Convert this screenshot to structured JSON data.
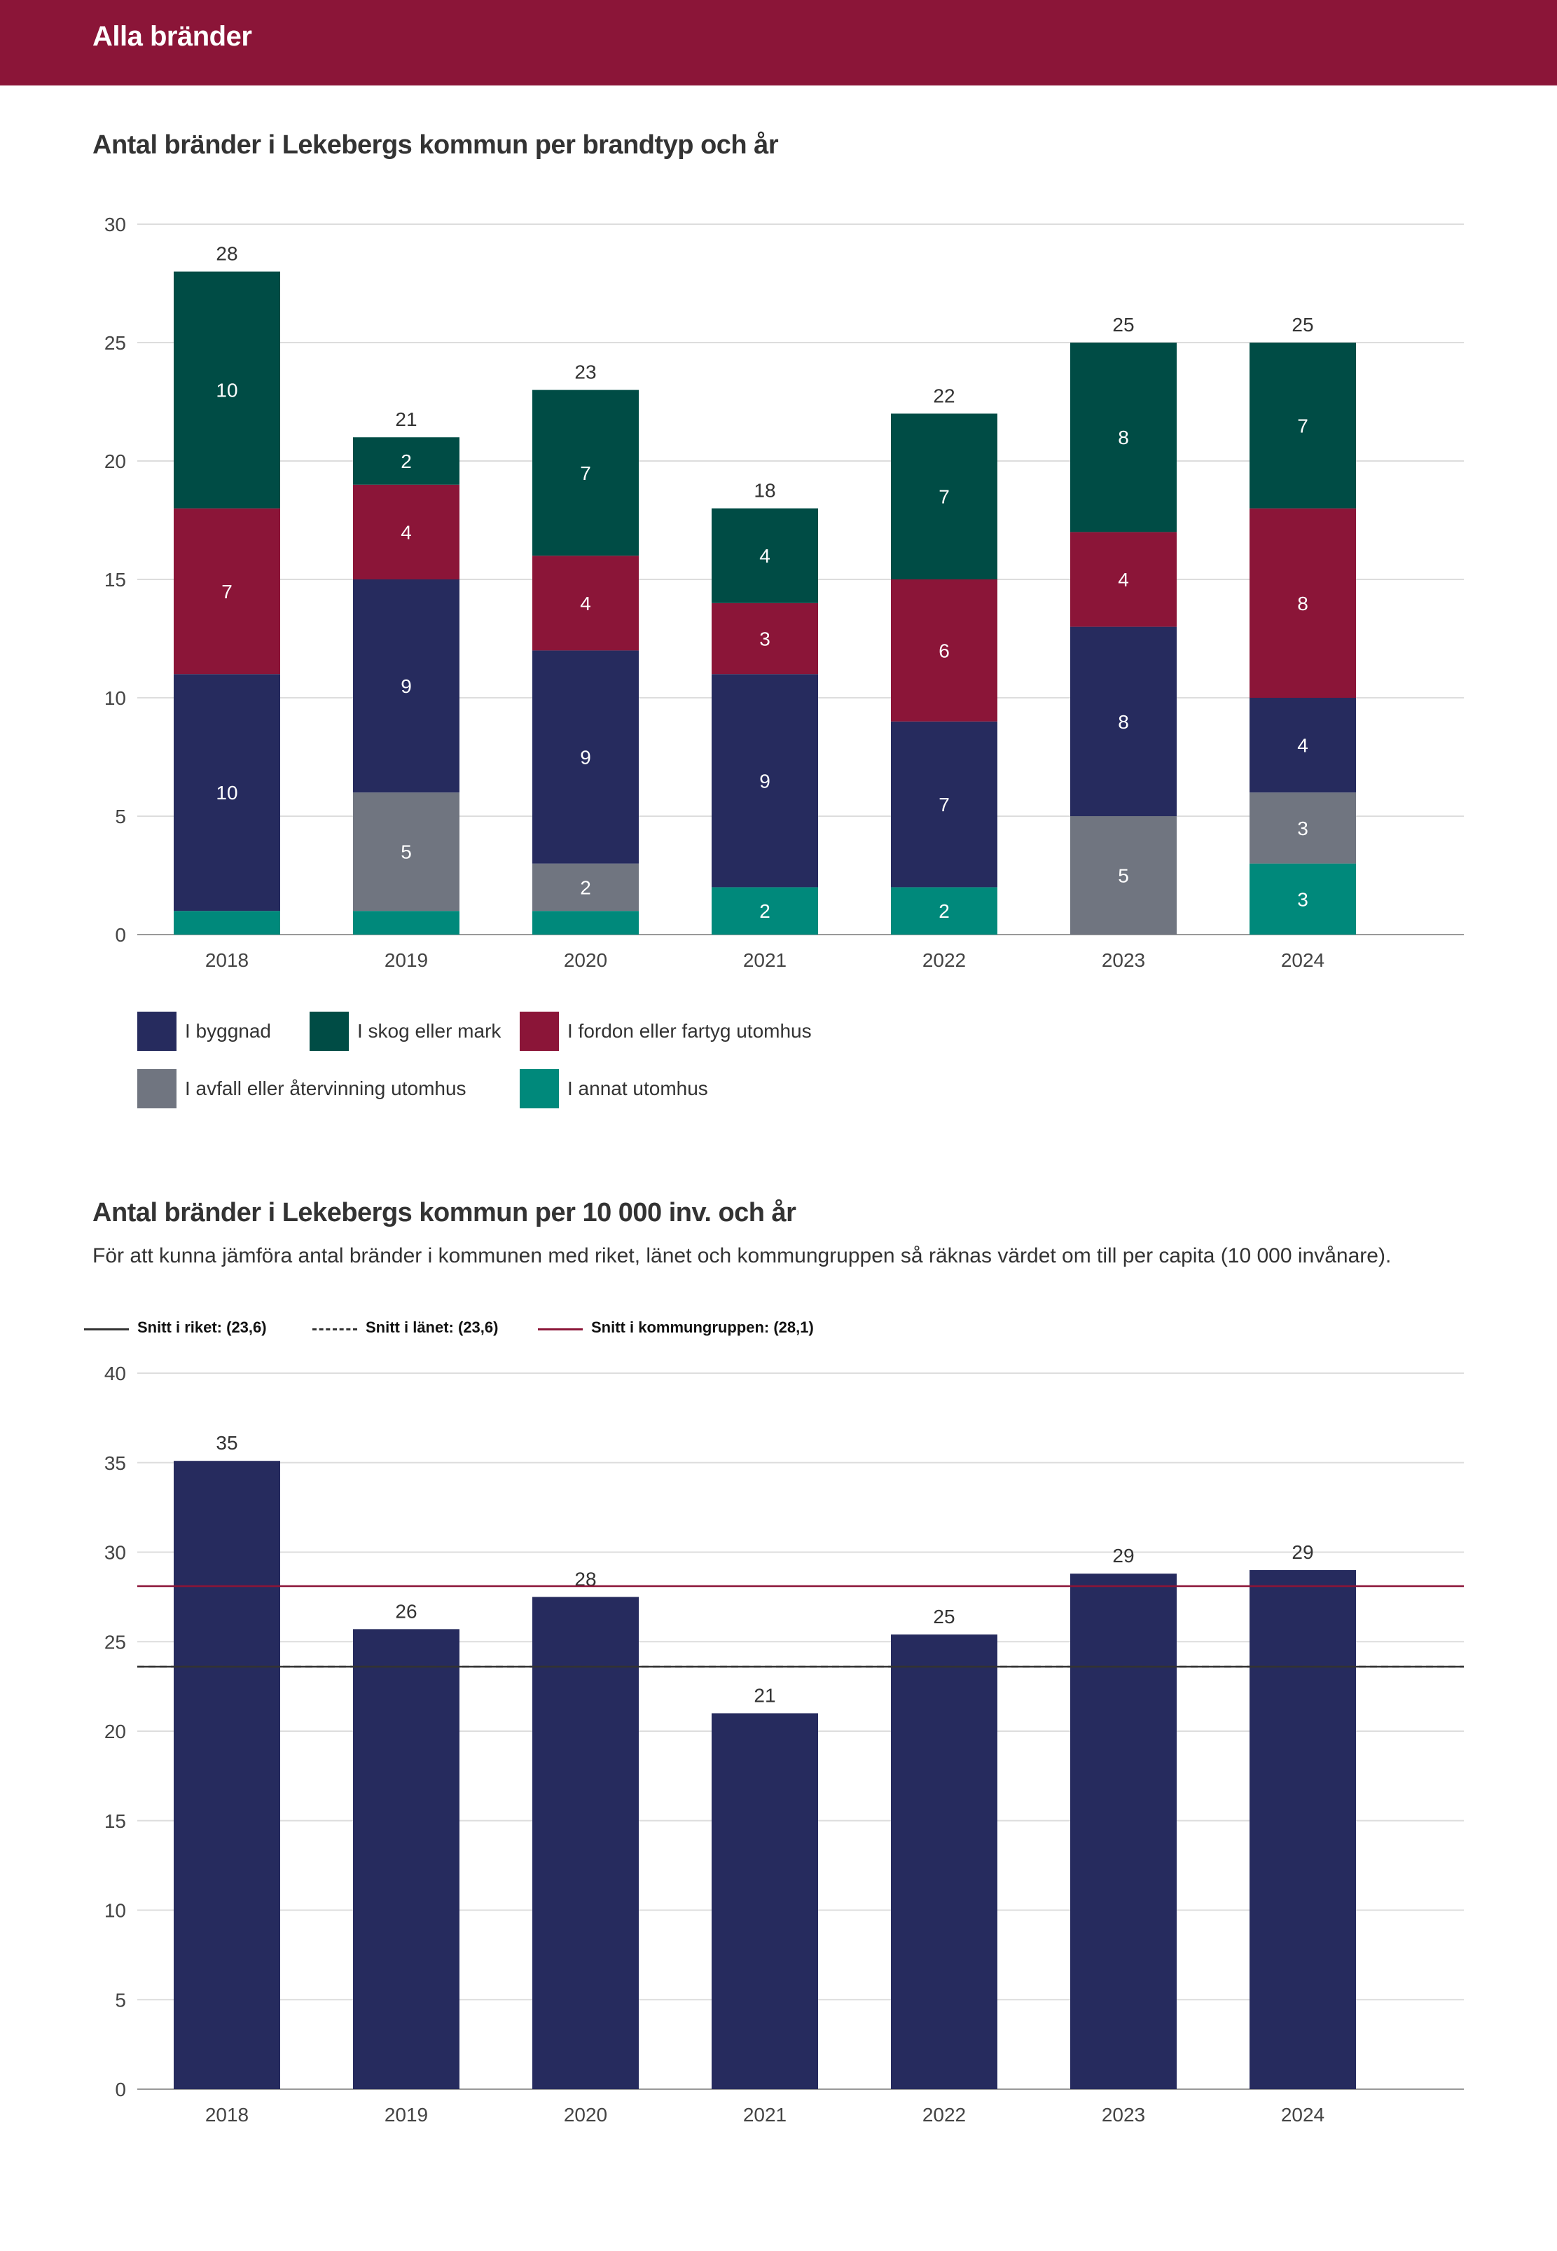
{
  "header": {
    "title": "Alla bränder"
  },
  "section1": {
    "title": "Antal bränder i Lekebergs kommun per brandtyp och år"
  },
  "section2": {
    "title": "Antal bränder i Lekebergs kommun per 10 000 inv. och år",
    "description": "För att kunna jämföra antal bränder i kommunen med riket, länet och kommungruppen så räknas värdet om till per capita (10 000 invånare)."
  },
  "legend1": [
    {
      "label": "I byggnad",
      "color": "#262b5e"
    },
    {
      "label": "I skog eller mark",
      "color": "#004c45"
    },
    {
      "label": "I fordon eller fartyg utomhus",
      "color": "#8b1538"
    },
    {
      "label": "I avfall eller återvinning utomhus",
      "color": "#707580"
    },
    {
      "label": "I annat utomhus",
      "color": "#00897b"
    }
  ],
  "reference_lines": [
    {
      "label": "Snitt i riket: (23,6)",
      "value": 23.6,
      "style": "solid",
      "color": "#333333"
    },
    {
      "label": "Snitt i länet: (23,6)",
      "value": 23.6,
      "style": "dashed",
      "color": "#333333"
    },
    {
      "label": "Snitt i kommungruppen: (28,1)",
      "value": 28.1,
      "style": "solid",
      "color": "#8b1538"
    }
  ],
  "chart_data": [
    {
      "type": "bar",
      "stacked": true,
      "title": "Antal bränder i Lekebergs kommun per brandtyp och år",
      "categories": [
        "2018",
        "2019",
        "2020",
        "2021",
        "2022",
        "2023",
        "2024"
      ],
      "ylim": [
        0,
        30
      ],
      "yticks": [
        0,
        5,
        10,
        15,
        20,
        25,
        30
      ],
      "totals": [
        28,
        21,
        23,
        18,
        22,
        25,
        25
      ],
      "series": [
        {
          "name": "I annat utomhus",
          "color": "#00897b",
          "values": [
            1,
            1,
            1,
            2,
            2,
            0,
            3
          ],
          "labels": [
            "",
            "",
            "",
            "2",
            "2",
            "",
            "3"
          ]
        },
        {
          "name": "I avfall eller återvinning utomhus",
          "color": "#707580",
          "values": [
            0,
            5,
            2,
            0,
            0,
            5,
            3
          ],
          "labels": [
            "",
            "5",
            "2",
            "",
            "",
            "5",
            "3"
          ]
        },
        {
          "name": "I byggnad",
          "color": "#262b5e",
          "values": [
            10,
            9,
            9,
            9,
            7,
            8,
            4
          ],
          "labels": [
            "10",
            "9",
            "9",
            "9",
            "7",
            "8",
            "4"
          ]
        },
        {
          "name": "I fordon eller fartyg utomhus",
          "color": "#8b1538",
          "values": [
            7,
            4,
            4,
            3,
            6,
            4,
            8
          ],
          "labels": [
            "7",
            "4",
            "4",
            "3",
            "6",
            "4",
            "8"
          ]
        },
        {
          "name": "I skog eller mark",
          "color": "#004c45",
          "values": [
            10,
            2,
            7,
            4,
            7,
            8,
            7
          ],
          "labels": [
            "10",
            "2",
            "7",
            "4",
            "7",
            "8",
            "7"
          ]
        }
      ]
    },
    {
      "type": "bar",
      "title": "Antal bränder i Lekebergs kommun per 10 000 inv. och år",
      "categories": [
        "2018",
        "2019",
        "2020",
        "2021",
        "2022",
        "2023",
        "2024"
      ],
      "values": [
        35.1,
        25.7,
        27.5,
        21.0,
        25.4,
        28.8,
        29.0
      ],
      "labels": [
        "35",
        "26",
        "28",
        "21",
        "25",
        "29",
        "29"
      ],
      "color": "#262b5e",
      "ylim": [
        0,
        40
      ],
      "yticks": [
        0,
        5,
        10,
        15,
        20,
        25,
        30,
        35,
        40
      ]
    }
  ]
}
